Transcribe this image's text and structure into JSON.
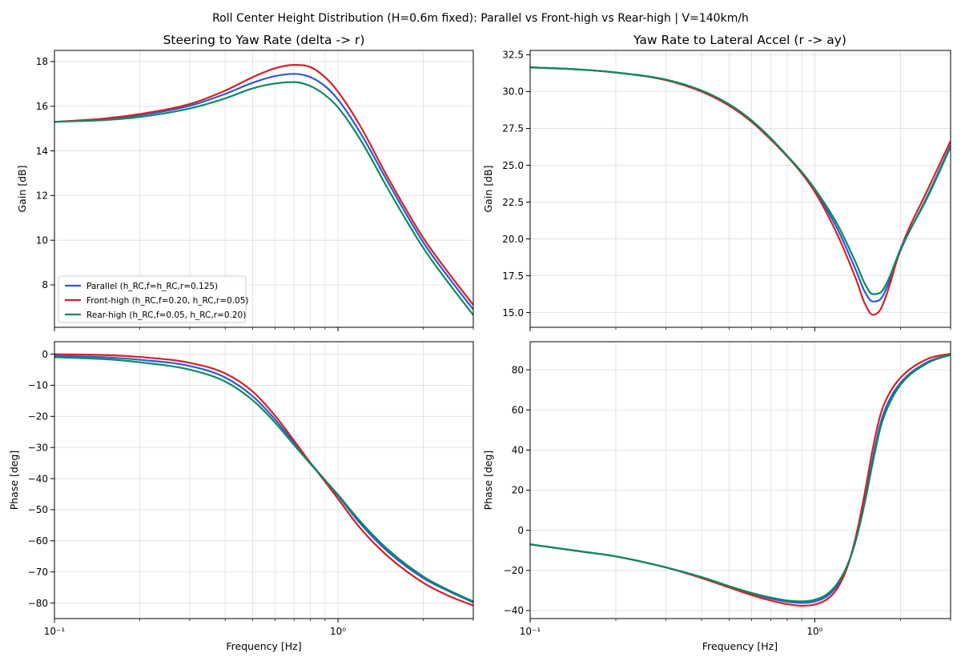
{
  "figure_title": "Roll Center Height Distribution (H=0.6m fixed): Parallel vs Front-high vs Rear-high  |  V=140km/h",
  "chart_data": [
    {
      "id": "sr_gain",
      "type": "line",
      "title": "Steering to Yaw Rate (delta -> r)",
      "xlabel": "",
      "ylabel": "Gain [dB]",
      "xscale": "log",
      "xlim": [
        0.1,
        3.0
      ],
      "ylim": [
        6.1,
        18.5
      ],
      "yticks": [
        8,
        10,
        12,
        14,
        16,
        18
      ],
      "yticklabels": [
        "8",
        "10",
        "12",
        "14",
        "16",
        "18"
      ],
      "xticks": [],
      "xticklabels": [],
      "grid": true,
      "legend": "lower-left",
      "x": [
        0.1,
        0.15,
        0.2,
        0.3,
        0.4,
        0.5,
        0.6,
        0.7,
        0.8,
        0.9,
        1.0,
        1.2,
        1.5,
        2.0,
        2.5,
        3.0
      ],
      "series": [
        {
          "name": "Parallel (h_RC,f=h_RC,r=0.125)",
          "color": "#2a5ad7",
          "values": [
            15.3,
            15.42,
            15.6,
            16.02,
            16.55,
            17.05,
            17.35,
            17.45,
            17.3,
            16.9,
            16.3,
            14.8,
            12.6,
            9.9,
            8.2,
            6.9
          ]
        },
        {
          "name": "Front-high (h_RC,f=0.20, h_RC,r=0.05)",
          "color": "#d62027",
          "values": [
            15.3,
            15.45,
            15.65,
            16.1,
            16.7,
            17.3,
            17.7,
            17.85,
            17.75,
            17.3,
            16.65,
            15.1,
            12.8,
            10.1,
            8.4,
            7.1
          ]
        },
        {
          "name": "Rear-high (h_RC,f=0.05, h_RC,r=0.20)",
          "color": "#0b8a62",
          "values": [
            15.3,
            15.38,
            15.52,
            15.9,
            16.35,
            16.8,
            17.02,
            17.08,
            16.9,
            16.5,
            15.95,
            14.5,
            12.3,
            9.65,
            7.95,
            6.65
          ]
        }
      ]
    },
    {
      "id": "sr_phase",
      "type": "line",
      "title": "",
      "xlabel": "Frequency [Hz]",
      "ylabel": "Phase [deg]",
      "xscale": "log",
      "xlim": [
        0.1,
        3.0
      ],
      "ylim": [
        -85.0,
        4.0
      ],
      "yticks": [
        0,
        -10,
        -20,
        -30,
        -40,
        -50,
        -60,
        -70,
        -80
      ],
      "yticklabels": [
        "0",
        "−10",
        "−20",
        "−30",
        "−40",
        "−50",
        "−60",
        "−70",
        "−80"
      ],
      "xticks": [
        0.1,
        1.0
      ],
      "xticklabels": [
        "10⁻¹",
        "10⁰"
      ],
      "grid": true,
      "legend": "none",
      "x": [
        0.1,
        0.15,
        0.2,
        0.3,
        0.4,
        0.5,
        0.6,
        0.7,
        0.8,
        0.9,
        1.0,
        1.2,
        1.5,
        2.0,
        2.5,
        3.0
      ],
      "series": [
        {
          "name": "Parallel (h_RC,f=h_RC,r=0.125)",
          "color": "#2a5ad7",
          "values": [
            -0.5,
            -1.0,
            -1.8,
            -3.8,
            -7.5,
            -13.5,
            -21.0,
            -28.5,
            -35.0,
            -40.5,
            -45.5,
            -54.5,
            -63.5,
            -72.0,
            -76.5,
            -79.8
          ]
        },
        {
          "name": "Front-high (h_RC,f=0.20, h_RC,r=0.05)",
          "color": "#d62027",
          "values": [
            0.0,
            -0.3,
            -0.9,
            -2.8,
            -6.2,
            -12.0,
            -19.8,
            -27.8,
            -35.0,
            -41.0,
            -46.5,
            -56.0,
            -65.0,
            -73.5,
            -78.0,
            -80.8
          ]
        },
        {
          "name": "Rear-high (h_RC,f=0.05, h_RC,r=0.20)",
          "color": "#0b8a62",
          "values": [
            -1.0,
            -1.6,
            -2.6,
            -5.0,
            -8.8,
            -14.8,
            -22.0,
            -29.2,
            -35.3,
            -40.5,
            -45.2,
            -53.8,
            -62.8,
            -71.5,
            -76.2,
            -79.5
          ]
        }
      ]
    },
    {
      "id": "ra_gain",
      "type": "line",
      "title": "Yaw Rate to Lateral Accel (r -> ay)",
      "xlabel": "",
      "ylabel": "Gain [dB]",
      "xscale": "log",
      "xlim": [
        0.1,
        3.0
      ],
      "ylim": [
        14.0,
        32.8
      ],
      "yticks": [
        15.0,
        17.5,
        20.0,
        22.5,
        25.0,
        27.5,
        30.0,
        32.5
      ],
      "yticklabels": [
        "15.0",
        "17.5",
        "20.0",
        "22.5",
        "25.0",
        "27.5",
        "30.0",
        "32.5"
      ],
      "xticks": [],
      "xticklabels": [],
      "grid": true,
      "legend": "none",
      "x": [
        0.1,
        0.15,
        0.2,
        0.3,
        0.4,
        0.5,
        0.6,
        0.7,
        0.8,
        0.9,
        1.0,
        1.2,
        1.4,
        1.5,
        1.6,
        1.7,
        1.8,
        2.0,
        2.5,
        3.0
      ],
      "series": [
        {
          "name": "Parallel (h_RC,f=h_RC,r=0.125)",
          "color": "#2a5ad7",
          "values": [
            31.65,
            31.5,
            31.3,
            30.8,
            30.05,
            29.1,
            28.0,
            26.8,
            25.6,
            24.5,
            23.3,
            20.7,
            17.8,
            16.4,
            15.75,
            15.9,
            16.8,
            19.2,
            23.0,
            26.35
          ]
        },
        {
          "name": "Front-high (h_RC,f=0.20, h_RC,r=0.05)",
          "color": "#d62027",
          "values": [
            31.65,
            31.5,
            31.3,
            30.78,
            30.0,
            29.05,
            27.95,
            26.75,
            25.6,
            24.45,
            23.2,
            20.3,
            17.2,
            15.6,
            14.85,
            15.2,
            16.4,
            19.3,
            23.4,
            26.65
          ]
        },
        {
          "name": "Rear-high (h_RC,f=0.05, h_RC,r=0.20)",
          "color": "#0b8a62",
          "values": [
            31.65,
            31.5,
            31.3,
            30.82,
            30.08,
            29.15,
            28.05,
            26.85,
            25.65,
            24.55,
            23.4,
            21.0,
            18.3,
            16.95,
            16.25,
            16.35,
            17.1,
            19.3,
            22.9,
            26.25
          ]
        }
      ]
    },
    {
      "id": "ra_phase",
      "type": "line",
      "title": "",
      "xlabel": "Frequency [Hz]",
      "ylabel": "Phase [deg]",
      "xscale": "log",
      "xlim": [
        0.1,
        3.0
      ],
      "ylim": [
        -44.0,
        94.0
      ],
      "yticks": [
        80,
        60,
        40,
        20,
        0,
        -20,
        -40
      ],
      "yticklabels": [
        "80",
        "60",
        "40",
        "20",
        "0",
        "−20",
        "−40"
      ],
      "xticks": [
        0.1,
        1.0
      ],
      "xticklabels": [
        "10⁻¹",
        "10⁰"
      ],
      "grid": true,
      "legend": "none",
      "x": [
        0.1,
        0.15,
        0.2,
        0.3,
        0.4,
        0.5,
        0.6,
        0.7,
        0.8,
        0.9,
        1.0,
        1.1,
        1.2,
        1.3,
        1.4,
        1.5,
        1.6,
        1.7,
        1.8,
        2.0,
        2.5,
        3.0
      ],
      "series": [
        {
          "name": "Parallel (h_RC,f=h_RC,r=0.125)",
          "color": "#2a5ad7",
          "values": [
            -7.0,
            -10.5,
            -13.0,
            -18.5,
            -23.5,
            -28.0,
            -31.5,
            -34.0,
            -35.6,
            -36.2,
            -35.5,
            -33.0,
            -27.5,
            -18.0,
            -4.0,
            15.0,
            36.0,
            53.0,
            63.0,
            73.5,
            84.0,
            87.5
          ]
        },
        {
          "name": "Front-high (h_RC,f=0.20, h_RC,r=0.05)",
          "color": "#d62027",
          "values": [
            -7.0,
            -10.5,
            -13.0,
            -18.5,
            -23.8,
            -28.5,
            -32.3,
            -35.0,
            -36.8,
            -37.6,
            -37.0,
            -34.5,
            -29.0,
            -18.5,
            -2.0,
            19.0,
            41.0,
            57.5,
            66.5,
            76.0,
            85.5,
            88.0
          ]
        },
        {
          "name": "Rear-high (h_RC,f=0.05, h_RC,r=0.20)",
          "color": "#0b8a62",
          "values": [
            -7.0,
            -10.5,
            -13.0,
            -18.5,
            -23.3,
            -27.8,
            -31.2,
            -33.5,
            -35.0,
            -35.4,
            -34.6,
            -32.0,
            -26.5,
            -17.5,
            -4.0,
            14.0,
            34.0,
            51.0,
            61.0,
            72.5,
            83.5,
            87.5
          ]
        }
      ]
    }
  ]
}
